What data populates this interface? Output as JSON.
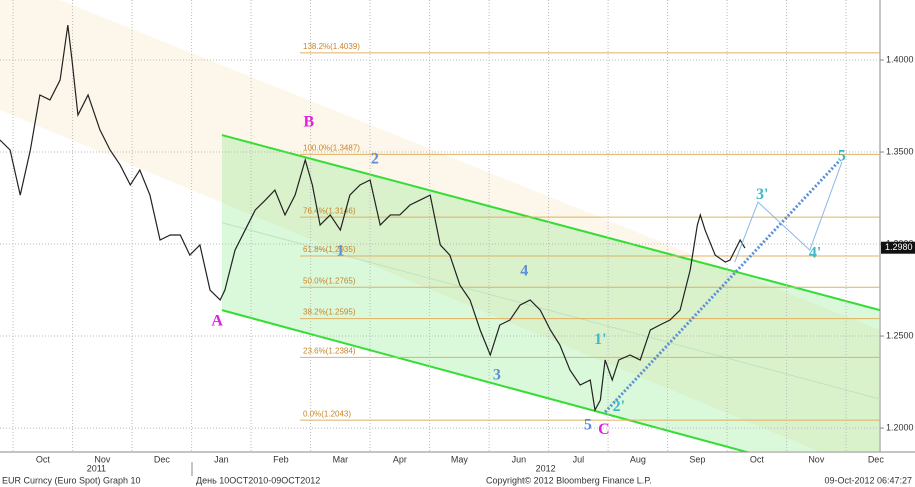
{
  "chart_data": {
    "type": "line",
    "title": "EUR Curncy (Euro Spot) Graph 10",
    "subtitle": "День 10OCT2010-09OCT2012",
    "copyright": "Copyright© 2012 Bloomberg Finance L.P.",
    "timestamp": "09-Oct-2012 06:47:27",
    "xlim": [
      -0.22,
      14.57
    ],
    "xticks": [
      {
        "value": 0.5,
        "label": "Oct"
      },
      {
        "value": 1.5,
        "label": "Nov"
      },
      {
        "value": 2.5,
        "label": "Dec"
      },
      {
        "value": 3.5,
        "label": "Jan"
      },
      {
        "value": 4.5,
        "label": "Feb"
      },
      {
        "value": 5.5,
        "label": "Mar"
      },
      {
        "value": 6.5,
        "label": "Apr"
      },
      {
        "value": 7.5,
        "label": "May"
      },
      {
        "value": 8.5,
        "label": "Jun"
      },
      {
        "value": 9.5,
        "label": "Jul"
      },
      {
        "value": 10.5,
        "label": "Aug"
      },
      {
        "value": 11.5,
        "label": "Sep"
      },
      {
        "value": 12.5,
        "label": "Oct"
      },
      {
        "value": 13.5,
        "label": "Nov"
      },
      {
        "value": 14.5,
        "label": "Dec"
      }
    ],
    "year_ticks": [
      {
        "value": 1.4,
        "label": "2011"
      },
      {
        "value": 8.95,
        "label": "2012"
      }
    ],
    "xgrid": [
      0,
      1,
      2,
      3,
      4,
      5,
      6,
      7,
      8,
      9,
      10,
      11,
      12,
      13,
      14
    ],
    "ylim": [
      1.187,
      1.4326
    ],
    "yticks": [
      {
        "value": 1.2,
        "label": "1.2000"
      },
      {
        "value": 1.25,
        "label": "1.2500"
      },
      {
        "value": 1.3,
        "label": "1.3000"
      },
      {
        "value": 1.35,
        "label": "1.3500"
      },
      {
        "value": 1.4,
        "label": "1.4000"
      }
    ],
    "grid": true,
    "series": [
      {
        "name": "EUR Curncy",
        "color": "#222222",
        "x": [
          -0.22,
          -0.05,
          0.12,
          0.29,
          0.45,
          0.62,
          0.79,
          0.92,
          0.99,
          1.09,
          1.26,
          1.46,
          1.63,
          1.8,
          1.97,
          2.13,
          2.3,
          2.47,
          2.64,
          2.81,
          2.97,
          3.14,
          3.31,
          3.48,
          3.56,
          3.73,
          3.9,
          4.07,
          4.24,
          4.4,
          4.57,
          4.74,
          4.91,
          5.03,
          5.16,
          5.33,
          5.5,
          5.66,
          5.83,
          6.0,
          6.17,
          6.34,
          6.5,
          6.67,
          6.84,
          7.01,
          7.18,
          7.34,
          7.51,
          7.68,
          7.85,
          8.02,
          8.18,
          8.35,
          8.52,
          8.69,
          8.86,
          9.03,
          9.19,
          9.36,
          9.53,
          9.7,
          9.78,
          9.87,
          9.95,
          10.07,
          10.18,
          10.37,
          10.54,
          10.71,
          10.87,
          11.04,
          11.21,
          11.38,
          11.5,
          11.55,
          11.63,
          11.8,
          11.97,
          12.05,
          12.22,
          12.3
        ],
        "values": [
          1.3565,
          1.3511,
          1.3266,
          1.3511,
          1.381,
          1.3783,
          1.3891,
          1.419,
          1.4,
          1.3701,
          1.381,
          1.362,
          1.3511,
          1.3429,
          1.3321,
          1.3402,
          1.3266,
          1.3022,
          1.3049,
          1.3049,
          1.294,
          1.2995,
          1.275,
          1.2696,
          1.275,
          1.2967,
          1.3076,
          1.3185,
          1.3239,
          1.3293,
          1.3158,
          1.3266,
          1.3457,
          1.3321,
          1.3103,
          1.3158,
          1.3076,
          1.3266,
          1.3321,
          1.3348,
          1.3103,
          1.3158,
          1.3158,
          1.3212,
          1.3239,
          1.3266,
          1.2995,
          1.294,
          1.2777,
          1.2696,
          1.2533,
          1.2397,
          1.256,
          1.2587,
          1.2668,
          1.2696,
          1.2641,
          1.2533,
          1.2451,
          1.2315,
          1.2234,
          1.2261,
          1.2098,
          1.2152,
          1.237,
          1.2261,
          1.237,
          1.2397,
          1.237,
          1.2533,
          1.256,
          1.2587,
          1.2641,
          1.2859,
          1.3103,
          1.3158,
          1.3076,
          1.294,
          1.2902,
          1.2913,
          1.3022,
          1.2978
        ]
      }
    ],
    "last_price": {
      "value": 1.298,
      "label": "1.2980"
    },
    "fib_levels": [
      {
        "label": "138.2%(1.4039)",
        "value": 1.4039
      },
      {
        "label": "100.0%(1.3487)",
        "value": 1.3487
      },
      {
        "label": "76.4%(1.3146)",
        "value": 1.3146
      },
      {
        "label": "61.8%(1.2935)",
        "value": 1.2935
      },
      {
        "label": "50.0%(1.2765)",
        "value": 1.2765
      },
      {
        "label": "38.2%(1.2595)",
        "value": 1.2595
      },
      {
        "label": "23.6%(1.2384)",
        "value": 1.2384
      },
      {
        "label": "0.0%(1.2043)",
        "value": 1.2043
      }
    ],
    "channel": {
      "x": [
        3.51,
        14.57
      ],
      "upper": [
        1.3592,
        1.2641
      ],
      "lower": [
        1.2641,
        1.1674
      ],
      "color": "#33dd33"
    },
    "trendline": {
      "x": [
        9.95,
        13.9
      ],
      "y": [
        1.2087,
        1.3457
      ],
      "color": "#5b8fd6"
    },
    "projection": {
      "x": [
        12.13,
        12.52,
        13.39,
        13.93
      ],
      "y": [
        1.2902,
        1.3228,
        1.2967,
        1.3446
      ],
      "color": "#8ab8e6"
    },
    "wave_labels": [
      {
        "label": "A",
        "x": 3.43,
        "y": 1.2576,
        "color": "#e020e0"
      },
      {
        "label": "B",
        "x": 4.97,
        "y": 1.3658,
        "color": "#e020e0"
      },
      {
        "label": "1",
        "x": 5.5,
        "y": 1.2957,
        "color": "#5b8fd6"
      },
      {
        "label": "2",
        "x": 6.08,
        "y": 1.3457,
        "color": "#5b8fd6"
      },
      {
        "label": "3",
        "x": 8.13,
        "y": 1.2283,
        "color": "#5b8fd6"
      },
      {
        "label": "4",
        "x": 8.59,
        "y": 1.2848,
        "color": "#5b8fd6"
      },
      {
        "label": "5",
        "x": 9.66,
        "y": 1.2011,
        "color": "#5b8fd6"
      },
      {
        "label": "C",
        "x": 9.93,
        "y": 1.1989,
        "color": "#e020e0"
      },
      {
        "label": "1'",
        "x": 9.87,
        "y": 1.2478,
        "color": "#3fb8c8"
      },
      {
        "label": "2'",
        "x": 10.18,
        "y": 1.2114,
        "color": "#3fb8c8"
      },
      {
        "label": "3'",
        "x": 12.59,
        "y": 1.3266,
        "color": "#3fb8c8"
      },
      {
        "label": "4'",
        "x": 13.48,
        "y": 1.2946,
        "color": "#3fb8c8"
      },
      {
        "label": "5",
        "x": 13.93,
        "y": 1.3473,
        "color": "#3fb8c8"
      }
    ]
  }
}
